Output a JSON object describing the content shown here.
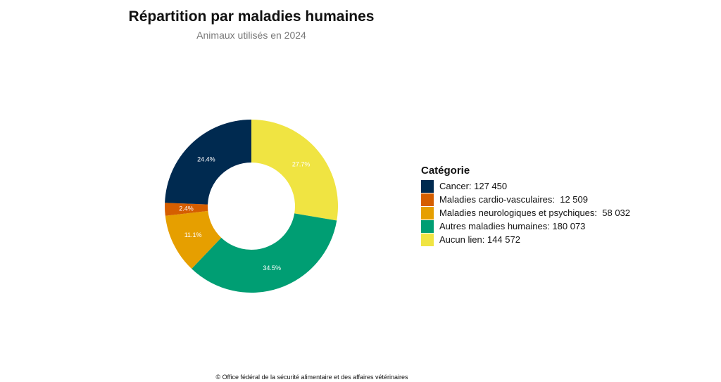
{
  "chart_data": {
    "type": "pie",
    "donut": true,
    "title": "Répartition par maladies humaines",
    "subtitle": "Animaux utilisés en 2024",
    "legend_title": "Catégorie",
    "legend_position": "right",
    "start": "top, clockwise",
    "slices": [
      {
        "name": "Aucun lien",
        "value": 144572,
        "percent_label": "27.7%",
        "legend_label": "Aucun lien: 144 572",
        "color": "#F0E442",
        "label_color": "#ffffff"
      },
      {
        "name": "Autres maladies humaines",
        "value": 180073,
        "percent_label": "34.5%",
        "legend_label": "Autres maladies humaines: 180 073",
        "color": "#009E73",
        "label_color": "#ffffff"
      },
      {
        "name": "Maladies neurologiques et psychiques",
        "value": 58032,
        "percent_label": "11.1%",
        "legend_label": "Maladies neurologiques et psychiques:  58 032",
        "color": "#E69F00",
        "label_color": "#ffffff"
      },
      {
        "name": "Maladies cardio-vasculaires",
        "value": 12509,
        "percent_label": "2.4%",
        "legend_label": "Maladies cardio-vasculaires:  12 509",
        "color": "#D55E00",
        "label_color": "#ffffff"
      },
      {
        "name": "Cancer",
        "value": 127450,
        "percent_label": "24.4%",
        "legend_label": "Cancer: 127 450",
        "color": "#002A50",
        "label_color": "#ffffff"
      }
    ],
    "legend_order": [
      4,
      3,
      2,
      1,
      0
    ]
  },
  "footer": "© Office fédéral de la sécurité alimentaire et des affaires vétérinaires"
}
